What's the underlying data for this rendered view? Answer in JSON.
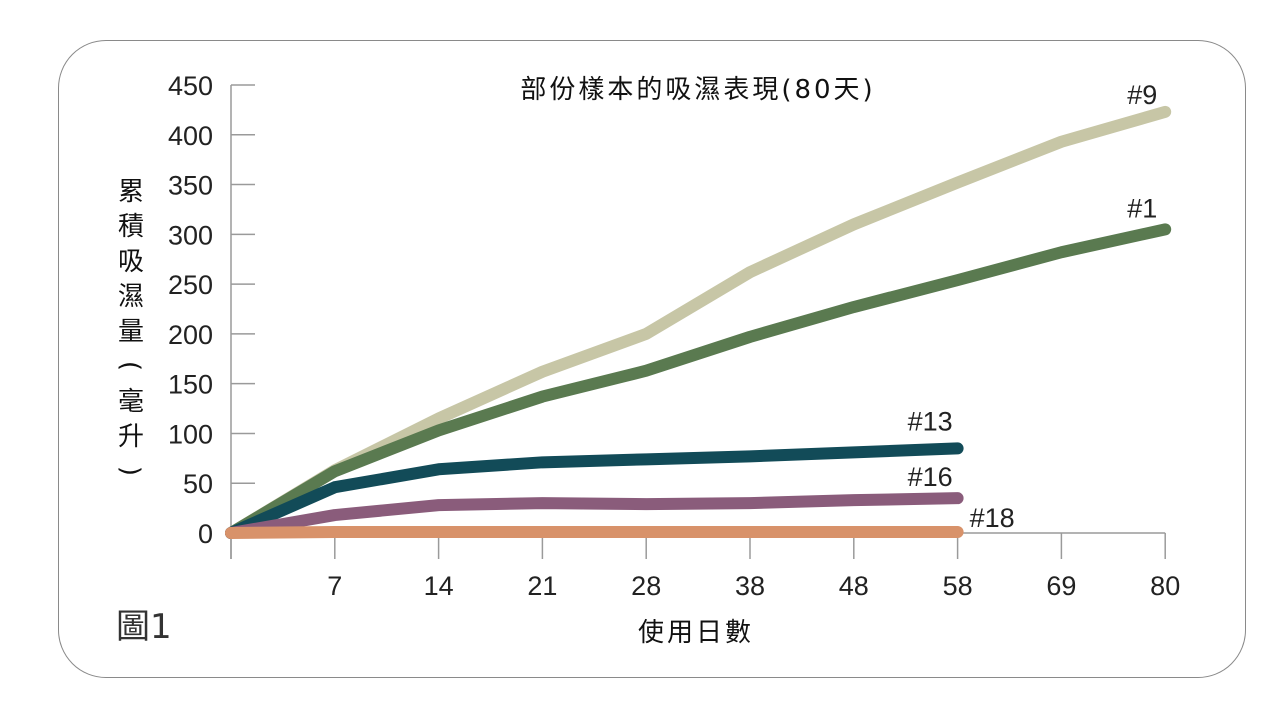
{
  "figure_label": "圖1",
  "chart_data": {
    "type": "line",
    "title": "部份樣本的吸濕表現(80天)",
    "xlabel": "使用日數",
    "ylabel": "累積吸濕量(毫升)",
    "categories": [
      "",
      "7",
      "14",
      "21",
      "28",
      "38",
      "48",
      "58",
      "69",
      "80"
    ],
    "yticks": [
      0,
      50,
      100,
      150,
      200,
      250,
      300,
      350,
      400,
      450
    ],
    "ylim": [
      0,
      450
    ],
    "grid": false,
    "series": [
      {
        "name": "#9",
        "color": "#c7c6a6",
        "values": [
          0,
          63,
          115,
          162,
          200,
          262,
          310,
          352,
          393,
          423
        ]
      },
      {
        "name": "#1",
        "color": "#5a7a50",
        "values": [
          0,
          62,
          103,
          137,
          163,
          197,
          227,
          254,
          282,
          305
        ]
      },
      {
        "name": "#13",
        "color": "#124b58",
        "values": [
          0,
          46,
          64,
          71,
          74,
          77,
          81,
          85,
          null,
          null
        ]
      },
      {
        "name": "#16",
        "color": "#8a5c7b",
        "values": [
          0,
          18,
          28,
          30,
          29,
          30,
          33,
          35,
          null,
          null
        ]
      },
      {
        "name": "#18",
        "color": "#d8926a",
        "values": [
          0,
          1,
          1,
          1,
          1,
          1,
          1,
          1,
          null,
          null
        ]
      }
    ]
  }
}
